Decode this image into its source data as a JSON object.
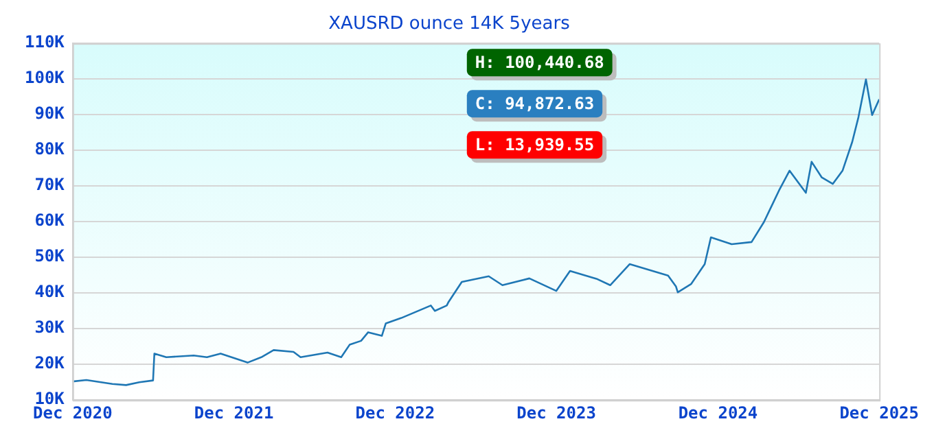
{
  "chart_data": {
    "type": "line",
    "title": "XAUSRD ounce 14K 5years",
    "annotations": [
      "H: 100,440.68",
      "C: 94,872.63",
      "L: 13,939.55"
    ],
    "x": [
      "2020-12-01",
      "2021-01-01",
      "2021-03-01",
      "2021-04-01",
      "2021-05-01",
      "2021-06-01",
      "2021-06-04",
      "2021-07-01",
      "2021-09-01",
      "2021-10-01",
      "2021-11-01",
      "2022-01-01",
      "2022-02-01",
      "2022-03-01",
      "2022-04-15",
      "2022-05-01",
      "2022-07-01",
      "2022-08-01",
      "2022-08-20",
      "2022-09-15",
      "2022-10-01",
      "2022-11-01",
      "2022-11-10",
      "2022-12-15",
      "2023-02-20",
      "2023-03-01",
      "2023-03-28",
      "2023-04-01",
      "2023-05-01",
      "2023-07-01",
      "2023-08-01",
      "2023-10-01",
      "2023-12-01",
      "2024-01-01",
      "2024-03-01",
      "2024-04-01",
      "2024-05-15",
      "2024-08-10",
      "2024-08-28",
      "2024-09-01",
      "2024-10-01",
      "2024-11-01",
      "2024-11-15",
      "2025-01-01",
      "2025-02-15",
      "2025-03-15",
      "2025-04-01",
      "2025-04-18",
      "2025-05-12",
      "2025-06-18",
      "2025-07-01",
      "2025-07-24",
      "2025-08-18",
      "2025-09-09",
      "2025-10-01",
      "2025-10-15",
      "2025-11-01",
      "2025-11-15",
      "2025-12-01"
    ],
    "series": [
      {
        "color": "#1f77b4",
        "values": [
          15200,
          15600,
          14500,
          14200,
          15000,
          15500,
          23000,
          22000,
          22500,
          22000,
          23000,
          20500,
          22000,
          24000,
          23500,
          22000,
          23300,
          22000,
          25500,
          26600,
          29000,
          28000,
          31500,
          33000,
          36500,
          35000,
          36500,
          37500,
          43100,
          44700,
          42200,
          44100,
          40600,
          46200,
          44000,
          42200,
          48100,
          44900,
          41800,
          40200,
          42500,
          48100,
          55600,
          53700,
          54300,
          59900,
          64300,
          68700,
          74300,
          68100,
          76800,
          72400,
          70600,
          74300,
          82400,
          89300,
          99900,
          89900,
          94300
        ]
      }
    ],
    "xlim": [
      "2020-12-01",
      "2025-12-01"
    ],
    "xticks": [
      {
        "value": "2020-12-01",
        "label": "Dec 2020"
      },
      {
        "value": "2021-12-01",
        "label": "Dec 2021"
      },
      {
        "value": "2022-12-01",
        "label": "Dec 2022"
      },
      {
        "value": "2023-12-01",
        "label": "Dec 2023"
      },
      {
        "value": "2024-12-01",
        "label": "Dec 2024"
      },
      {
        "value": "2025-12-01",
        "label": "Dec 2025"
      }
    ],
    "ylim": [
      10000,
      110000
    ],
    "yticks": [
      {
        "value": 10000,
        "label": "10K"
      },
      {
        "value": 20000,
        "label": "20K"
      },
      {
        "value": 30000,
        "label": "30K"
      },
      {
        "value": 40000,
        "label": "40K"
      },
      {
        "value": 50000,
        "label": "50K"
      },
      {
        "value": 60000,
        "label": "60K"
      },
      {
        "value": 70000,
        "label": "70K"
      },
      {
        "value": 80000,
        "label": "80K"
      },
      {
        "value": 90000,
        "label": "90K"
      },
      {
        "value": 100000,
        "label": "100K"
      },
      {
        "value": 110000,
        "label": "110K"
      }
    ],
    "grid": "y",
    "marker": "none",
    "line_style": "solid"
  }
}
